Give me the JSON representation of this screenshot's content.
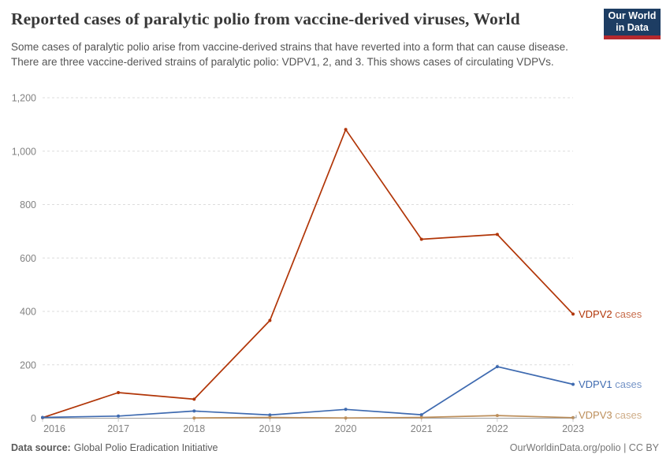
{
  "header": {
    "title": "Reported cases of paralytic polio from vaccine-derived viruses, World",
    "subtitle": "Some cases of paralytic polio arise from vaccine-derived strains that have reverted into a form that can cause disease. There are three vaccine-derived strains of paralytic polio: VDPV1, 2, and 3. This shows cases of circulating VDPVs.",
    "logo": {
      "line1": "Our World",
      "line2": "in Data",
      "bg_color": "#1d3d63",
      "accent_color": "#b5292e"
    }
  },
  "chart_data": {
    "type": "line",
    "title": "Reported cases of paralytic polio from vaccine-derived viruses, World",
    "xlabel": "",
    "ylabel": "",
    "x": [
      2016,
      2017,
      2018,
      2019,
      2020,
      2021,
      2022,
      2023
    ],
    "ylim": [
      0,
      1200
    ],
    "grid": true,
    "gridline_color": "#dcdcdc",
    "axis_line_color": "#a1a1a1",
    "legend_position": "right-end-of-lines",
    "yticks": [
      {
        "value": 0,
        "label": "0"
      },
      {
        "value": 200,
        "label": "200"
      },
      {
        "value": 400,
        "label": "400"
      },
      {
        "value": 600,
        "label": "600"
      },
      {
        "value": 800,
        "label": "800"
      },
      {
        "value": 1000,
        "label": "1,000"
      },
      {
        "value": 1200,
        "label": "1,200"
      }
    ],
    "series": [
      {
        "name": "VDPV2 cases",
        "label": "VDPV2",
        "annotation": "cases",
        "color": "#b13507",
        "values": [
          2,
          96,
          71,
          366,
          1081,
          670,
          688,
          390
        ]
      },
      {
        "name": "VDPV1 cases",
        "label": "VDPV1",
        "annotation": "cases",
        "color": "#3e6ab0",
        "values": [
          3,
          8,
          27,
          12,
          33,
          13,
          193,
          127
        ]
      },
      {
        "name": "VDPV3 cases",
        "label": "VDPV3",
        "annotation": "cases",
        "color": "#bc8e5a",
        "values": [
          null,
          null,
          1,
          3,
          1,
          3,
          10,
          2
        ]
      }
    ]
  },
  "footer": {
    "source_label": "Data source:",
    "source_value": "Global Polio Eradication Initiative",
    "right_text": "OurWorldinData.org/polio | CC BY"
  }
}
